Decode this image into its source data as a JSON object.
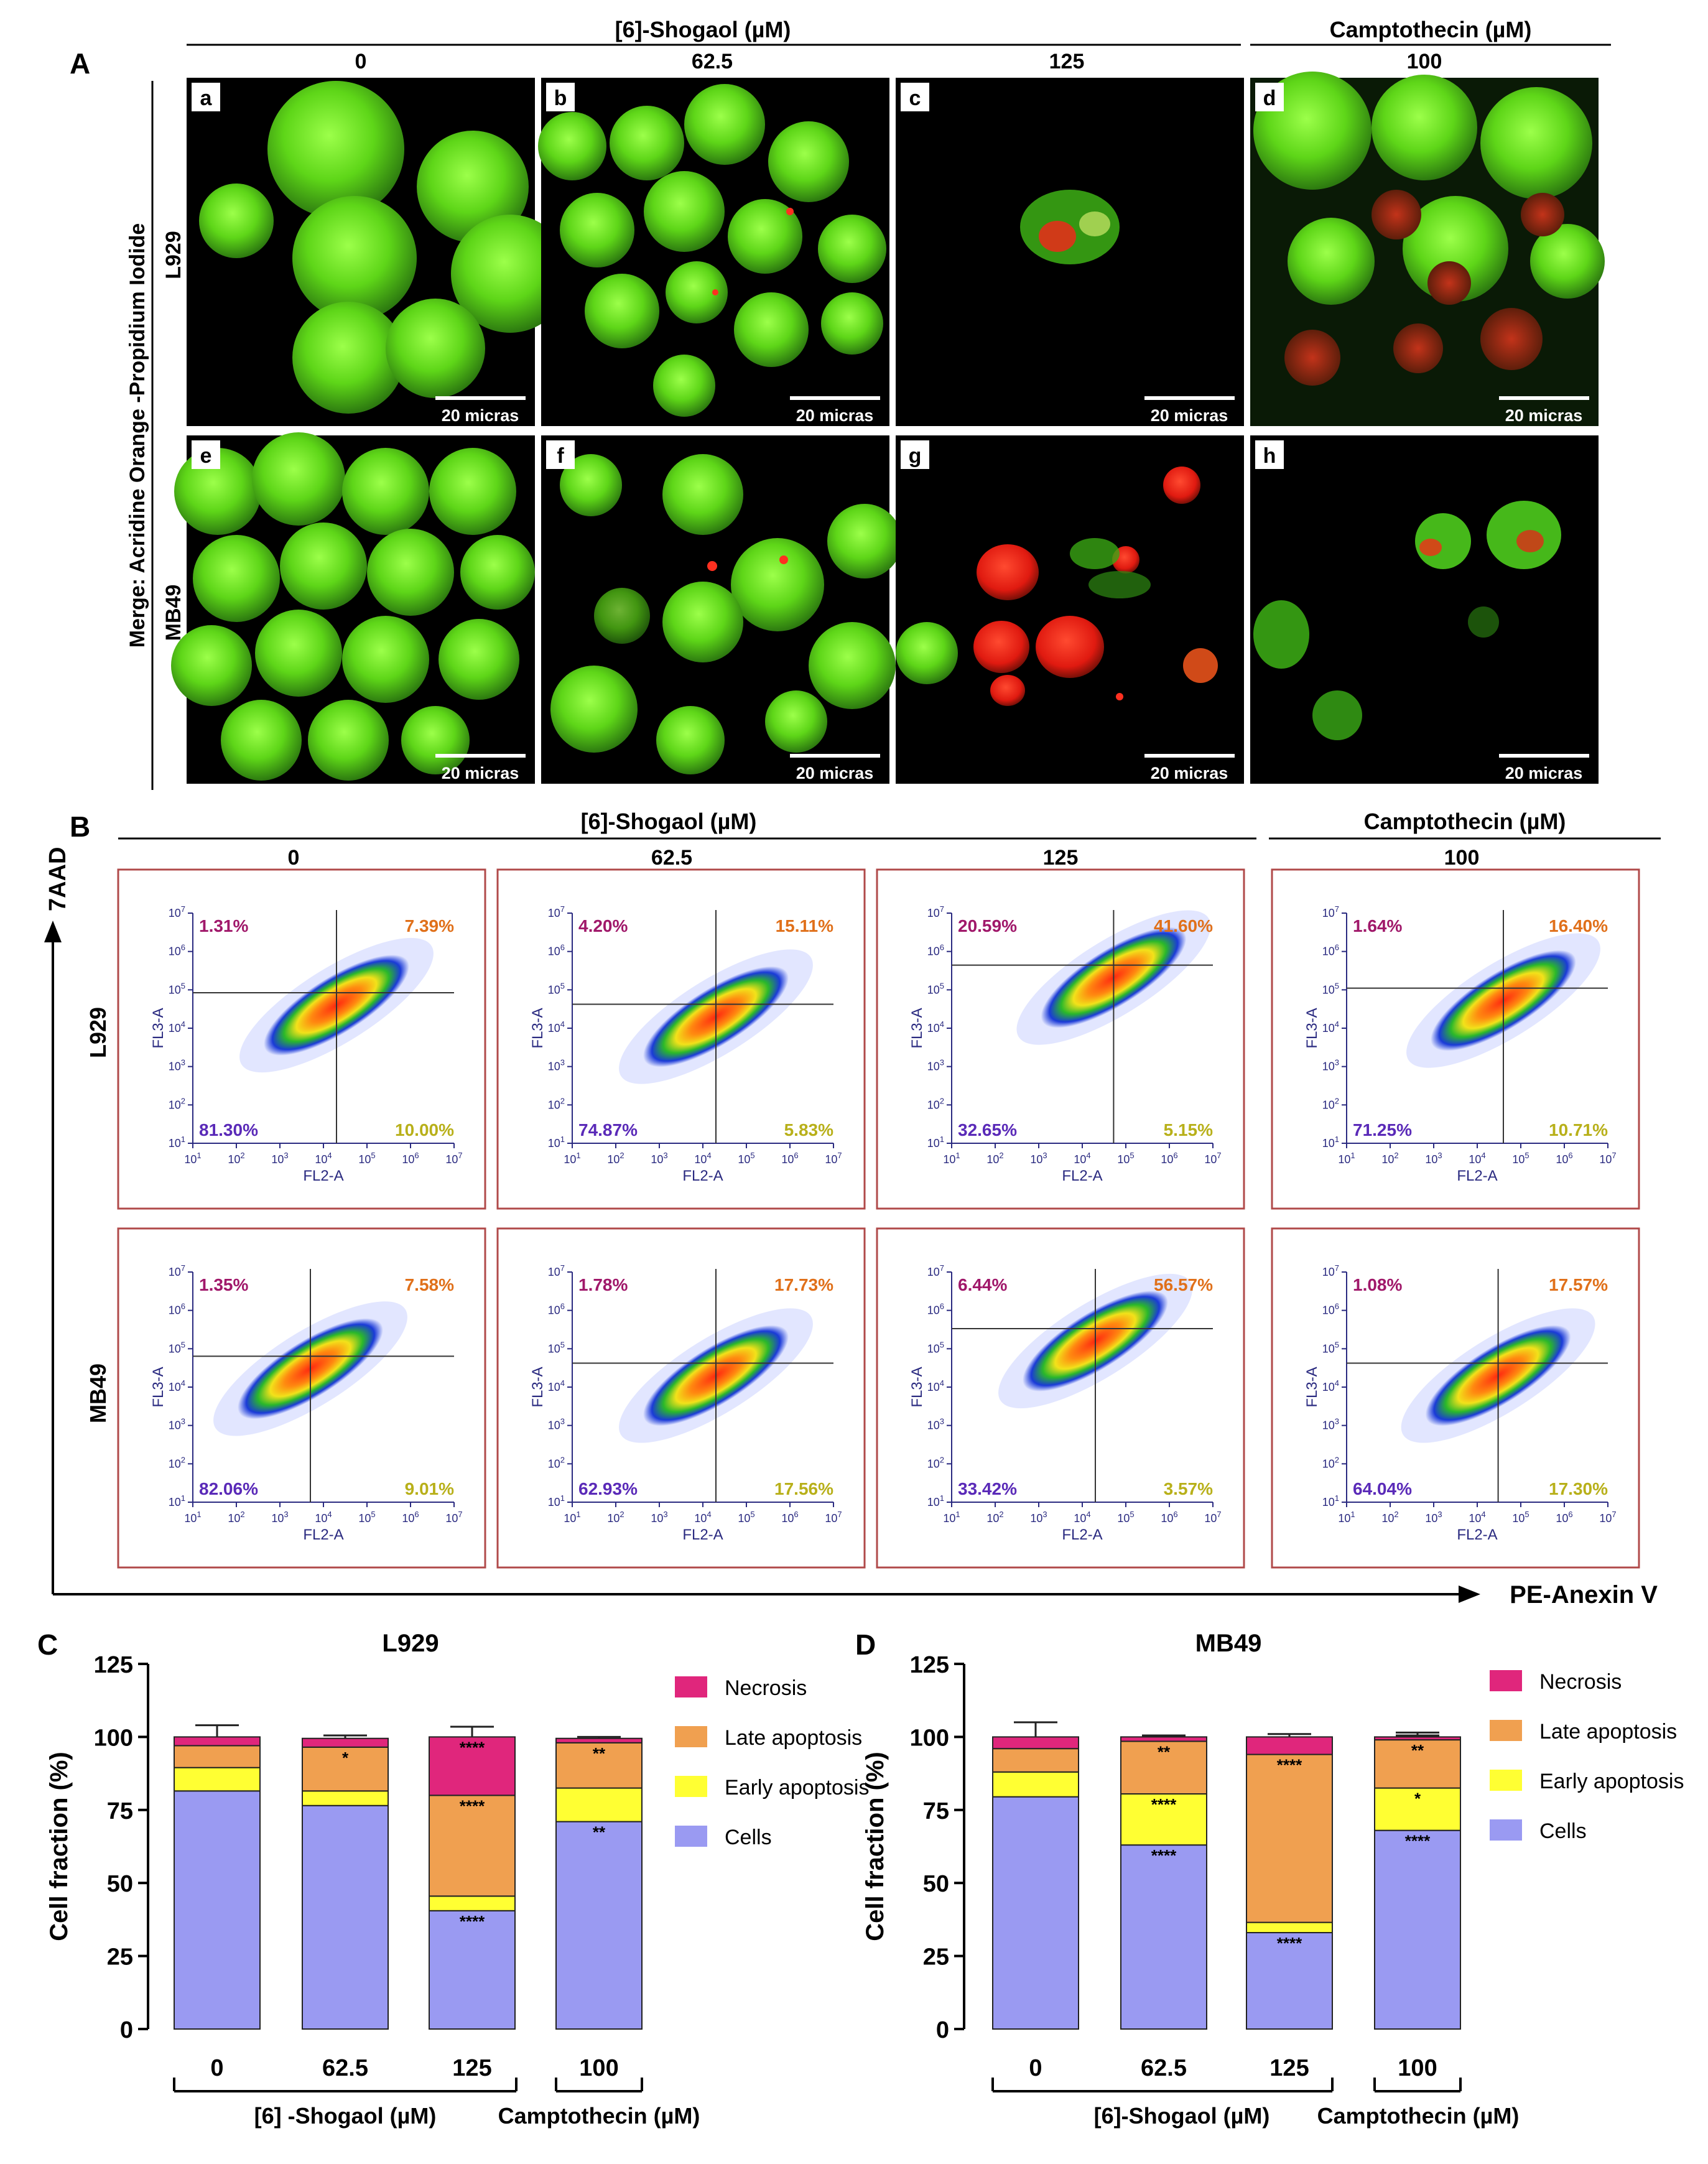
{
  "panel_letters": [
    "A",
    "B",
    "C",
    "D"
  ],
  "header": {
    "shogaol_label": "[6]-Shogaol (µM)",
    "campto_label": "Camptothecin (µM)",
    "doses": [
      "0",
      "62.5",
      "125",
      "100"
    ]
  },
  "panel_a": {
    "side_label": "Merge: Acridine Orange -Propidium Iodide",
    "rows": [
      "L929",
      "MB49"
    ],
    "tile_letters": [
      "a",
      "b",
      "c",
      "d",
      "e",
      "f",
      "g",
      "h"
    ],
    "scale_bar": "20 micras"
  },
  "panel_b": {
    "y_axis": "7AAD",
    "x_axis": "PE-Anexin V",
    "rows": [
      "L929",
      "MB49"
    ],
    "plot_xlabel": "FL2-A",
    "plot_ylabel": "FL3-A",
    "tick_base": "10",
    "plots": [
      {
        "ul": "1.31%",
        "ur": "7.39%",
        "ll": "81.30%",
        "lr": "10.00%"
      },
      {
        "ul": "4.20%",
        "ur": "15.11%",
        "ll": "74.87%",
        "lr": "5.83%"
      },
      {
        "ul": "20.59%",
        "ur": "41.60%",
        "ll": "32.65%",
        "lr": "5.15%"
      },
      {
        "ul": "1.64%",
        "ur": "16.40%",
        "ll": "71.25%",
        "lr": "10.71%"
      },
      {
        "ul": "1.35%",
        "ur": "7.58%",
        "ll": "82.06%",
        "lr": "9.01%"
      },
      {
        "ul": "1.78%",
        "ur": "17.73%",
        "ll": "62.93%",
        "lr": "17.56%"
      },
      {
        "ul": "6.44%",
        "ur": "56.57%",
        "ll": "33.42%",
        "lr": "3.57%"
      },
      {
        "ul": "1.08%",
        "ur": "17.57%",
        "ll": "64.04%",
        "lr": "17.30%"
      }
    ]
  },
  "colors": {
    "necrosis": "#e0267c",
    "late": "#f0a050",
    "early": "#ffff33",
    "cells": "#9a9af2",
    "ul_text": "#a0186a",
    "ur_text": "#e0701a",
    "ll_text": "#5a2ab8",
    "lr_text": "#b8b01a",
    "frame": "#b04a4a"
  },
  "chart_data": [
    {
      "type": "bar",
      "stacked": true,
      "title": "L929",
      "ylabel": "Cell fraction (%)",
      "ylim": [
        0,
        125
      ],
      "yticks": [
        "0",
        "25",
        "50",
        "75",
        "100",
        "125"
      ],
      "categories": [
        "0",
        "62.5",
        "125",
        "100"
      ],
      "group_labels": [
        "[6] -Shogaol (µM)",
        "Camptothecin (µM)"
      ],
      "series": [
        {
          "name": "Cells",
          "values": [
            81.5,
            76.5,
            40.5,
            71.0
          ],
          "errors": [
            3,
            1,
            0,
            0.5
          ],
          "sig": [
            "",
            "",
            "****",
            "**"
          ]
        },
        {
          "name": "Early apoptosis",
          "values": [
            8.0,
            5.0,
            5.0,
            11.5
          ],
          "errors": [
            1.5,
            1,
            2,
            0.5
          ],
          "sig": [
            "",
            "",
            "",
            ""
          ]
        },
        {
          "name": "Late apoptosis",
          "values": [
            7.5,
            15.0,
            34.5,
            15.5
          ],
          "errors": [
            0,
            0,
            7,
            0
          ],
          "sig": [
            "",
            "*",
            "****",
            "**"
          ]
        },
        {
          "name": "Necrosis",
          "values": [
            3.0,
            3.0,
            20.0,
            1.5
          ],
          "errors": [
            4,
            1,
            3.5,
            0.5
          ],
          "sig": [
            "",
            "",
            "****",
            ""
          ]
        }
      ],
      "legend": [
        "Necrosis",
        "Late apoptosis",
        "Early apoptosis",
        "Cells"
      ]
    },
    {
      "type": "bar",
      "stacked": true,
      "title": "MB49",
      "ylabel": "Cell fraction (%)",
      "ylim": [
        0,
        125
      ],
      "yticks": [
        "0",
        "25",
        "50",
        "75",
        "100",
        "125"
      ],
      "categories": [
        "0",
        "62.5",
        "125",
        "100"
      ],
      "group_labels": [
        "[6]-Shogaol (µM)",
        "Camptothecin (µM)"
      ],
      "series": [
        {
          "name": "Cells",
          "values": [
            79.5,
            63.0,
            33.0,
            68.0
          ],
          "errors": [
            3.5,
            0.5,
            0,
            0
          ],
          "sig": [
            "",
            "****",
            "****",
            "****"
          ]
        },
        {
          "name": "Early apoptosis",
          "values": [
            8.5,
            17.5,
            3.5,
            14.5
          ],
          "errors": [
            2,
            0.5,
            1,
            4
          ],
          "sig": [
            "",
            "****",
            "",
            "*"
          ]
        },
        {
          "name": "Late apoptosis",
          "values": [
            8.0,
            18.0,
            57.5,
            16.5
          ],
          "errors": [
            0,
            0,
            0,
            2.5
          ],
          "sig": [
            "",
            "**",
            "****",
            "**"
          ]
        },
        {
          "name": "Necrosis",
          "values": [
            4.0,
            1.5,
            6.0,
            1.0
          ],
          "errors": [
            5,
            0.5,
            1,
            0.5
          ],
          "sig": [
            "",
            "",
            "",
            ""
          ]
        }
      ],
      "legend": [
        "Necrosis",
        "Late apoptosis",
        "Early apoptosis",
        "Cells"
      ]
    }
  ]
}
